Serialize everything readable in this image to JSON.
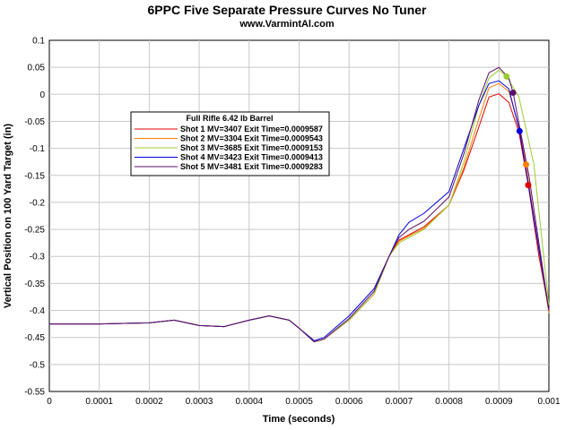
{
  "chart_data": {
    "type": "line",
    "title": "6PPC Five Separate Pressure Curves No Tuner",
    "subtitle": "www.VarmintAl.com",
    "xlabel": "Time (seconds)",
    "ylabel": "Vertical Position on 100 Yard Target (in)",
    "xlim": [
      0,
      0.001
    ],
    "ylim": [
      -0.55,
      0.1
    ],
    "x_ticks": [
      "0",
      "0.0001",
      "0.0002",
      "0.0003",
      "0.0004",
      "0.0005",
      "0.0006",
      "0.0007",
      "0.0008",
      "0.0009",
      "0.001"
    ],
    "y_ticks": [
      "0.1",
      "0.05",
      "0",
      "-0.05",
      "-0.1",
      "-0.15",
      "-0.2",
      "-0.25",
      "-0.3",
      "-0.35",
      "-0.4",
      "-0.45",
      "-0.5",
      "-0.55"
    ],
    "grid": true,
    "legend_title": "Full Rifle 6.42 lb Barrel",
    "legend_position": "upper-left",
    "series": [
      {
        "name": "Shot 1 MV=3407 Exit Time=0.0009587",
        "color": "#e00000",
        "exit": [
          0.0009587,
          -0.168
        ],
        "points": [
          [
            0,
            -0.425
          ],
          [
            0.0001,
            -0.425
          ],
          [
            0.0002,
            -0.423
          ],
          [
            0.00025,
            -0.418
          ],
          [
            0.0003,
            -0.428
          ],
          [
            0.00035,
            -0.43
          ],
          [
            0.0004,
            -0.418
          ],
          [
            0.00044,
            -0.41
          ],
          [
            0.00048,
            -0.418
          ],
          [
            0.0005,
            -0.433
          ],
          [
            0.00053,
            -0.458
          ],
          [
            0.00055,
            -0.453
          ],
          [
            0.0006,
            -0.418
          ],
          [
            0.00065,
            -0.37
          ],
          [
            0.00068,
            -0.3
          ],
          [
            0.0007,
            -0.27
          ],
          [
            0.00072,
            -0.26
          ],
          [
            0.00075,
            -0.245
          ],
          [
            0.0008,
            -0.205
          ],
          [
            0.00083,
            -0.14
          ],
          [
            0.00086,
            -0.06
          ],
          [
            0.00088,
            -0.005
          ],
          [
            0.0009,
            0.001
          ],
          [
            0.00092,
            -0.015
          ],
          [
            0.00094,
            -0.07
          ],
          [
            0.0009587,
            -0.168
          ],
          [
            0.00098,
            -0.3
          ],
          [
            0.001,
            -0.4
          ]
        ]
      },
      {
        "name": "Shot 2 MV=3304 Exit Time=0.0009543",
        "color": "#ff7f00",
        "exit": [
          0.0009543,
          -0.13
        ],
        "points": [
          [
            0,
            -0.425
          ],
          [
            0.0001,
            -0.425
          ],
          [
            0.0002,
            -0.423
          ],
          [
            0.00025,
            -0.418
          ],
          [
            0.0003,
            -0.428
          ],
          [
            0.00035,
            -0.43
          ],
          [
            0.0004,
            -0.418
          ],
          [
            0.00044,
            -0.41
          ],
          [
            0.00048,
            -0.418
          ],
          [
            0.0005,
            -0.433
          ],
          [
            0.00053,
            -0.458
          ],
          [
            0.00055,
            -0.453
          ],
          [
            0.0006,
            -0.418
          ],
          [
            0.00065,
            -0.37
          ],
          [
            0.00068,
            -0.3
          ],
          [
            0.0007,
            -0.272
          ],
          [
            0.00072,
            -0.262
          ],
          [
            0.00075,
            -0.248
          ],
          [
            0.0008,
            -0.205
          ],
          [
            0.00083,
            -0.135
          ],
          [
            0.00086,
            -0.045
          ],
          [
            0.00088,
            0.012
          ],
          [
            0.0009,
            0.02
          ],
          [
            0.00092,
            0.005
          ],
          [
            0.00094,
            -0.06
          ],
          [
            0.0009543,
            -0.13
          ],
          [
            0.00098,
            -0.29
          ],
          [
            0.001,
            -0.405
          ]
        ]
      },
      {
        "name": "Shot 3 MV=3685 Exit Time=0.0009153",
        "color": "#9acd32",
        "exit": [
          0.0009153,
          0.033
        ],
        "points": [
          [
            0,
            -0.425
          ],
          [
            0.0001,
            -0.425
          ],
          [
            0.0002,
            -0.423
          ],
          [
            0.00025,
            -0.418
          ],
          [
            0.0003,
            -0.428
          ],
          [
            0.00035,
            -0.43
          ],
          [
            0.0004,
            -0.418
          ],
          [
            0.00044,
            -0.41
          ],
          [
            0.00048,
            -0.418
          ],
          [
            0.0005,
            -0.433
          ],
          [
            0.00053,
            -0.458
          ],
          [
            0.00055,
            -0.453
          ],
          [
            0.0006,
            -0.418
          ],
          [
            0.00065,
            -0.37
          ],
          [
            0.00068,
            -0.3
          ],
          [
            0.0007,
            -0.275
          ],
          [
            0.00072,
            -0.265
          ],
          [
            0.00075,
            -0.25
          ],
          [
            0.0008,
            -0.205
          ],
          [
            0.00083,
            -0.125
          ],
          [
            0.00086,
            -0.02
          ],
          [
            0.00088,
            0.03
          ],
          [
            0.0009,
            0.045
          ],
          [
            0.0009153,
            0.033
          ],
          [
            0.00094,
            -0.005
          ],
          [
            0.00097,
            -0.13
          ],
          [
            0.001,
            -0.39
          ]
        ]
      },
      {
        "name": "Shot 4 MV=3423 Exit Time=0.0009413",
        "color": "#0000dd",
        "exit": [
          0.0009413,
          -0.068
        ],
        "points": [
          [
            0,
            -0.425
          ],
          [
            0.0001,
            -0.425
          ],
          [
            0.0002,
            -0.423
          ],
          [
            0.00025,
            -0.418
          ],
          [
            0.0003,
            -0.428
          ],
          [
            0.00035,
            -0.43
          ],
          [
            0.0004,
            -0.418
          ],
          [
            0.00044,
            -0.41
          ],
          [
            0.00048,
            -0.418
          ],
          [
            0.0005,
            -0.433
          ],
          [
            0.00053,
            -0.456
          ],
          [
            0.00055,
            -0.45
          ],
          [
            0.0006,
            -0.41
          ],
          [
            0.00065,
            -0.36
          ],
          [
            0.00068,
            -0.3
          ],
          [
            0.0007,
            -0.26
          ],
          [
            0.00072,
            -0.237
          ],
          [
            0.00075,
            -0.22
          ],
          [
            0.0008,
            -0.18
          ],
          [
            0.00083,
            -0.1
          ],
          [
            0.00086,
            -0.02
          ],
          [
            0.00088,
            0.02
          ],
          [
            0.0009,
            0.025
          ],
          [
            0.00092,
            0.01
          ],
          [
            0.0009413,
            -0.068
          ],
          [
            0.00097,
            -0.23
          ],
          [
            0.001,
            -0.4
          ]
        ]
      },
      {
        "name": "Shot 5 MV=3481 Exit Time=0.0009283",
        "color": "#5b0f6b",
        "exit": [
          0.0009283,
          0.003
        ],
        "points": [
          [
            0,
            -0.425
          ],
          [
            0.0001,
            -0.425
          ],
          [
            0.0002,
            -0.423
          ],
          [
            0.00025,
            -0.418
          ],
          [
            0.0003,
            -0.428
          ],
          [
            0.00035,
            -0.43
          ],
          [
            0.0004,
            -0.418
          ],
          [
            0.00044,
            -0.41
          ],
          [
            0.00048,
            -0.418
          ],
          [
            0.0005,
            -0.433
          ],
          [
            0.00053,
            -0.458
          ],
          [
            0.00055,
            -0.453
          ],
          [
            0.0006,
            -0.415
          ],
          [
            0.00065,
            -0.365
          ],
          [
            0.00068,
            -0.3
          ],
          [
            0.0007,
            -0.265
          ],
          [
            0.00072,
            -0.25
          ],
          [
            0.00075,
            -0.235
          ],
          [
            0.0008,
            -0.19
          ],
          [
            0.00083,
            -0.11
          ],
          [
            0.00086,
            -0.01
          ],
          [
            0.00088,
            0.04
          ],
          [
            0.0009,
            0.05
          ],
          [
            0.00092,
            0.03
          ],
          [
            0.0009283,
            0.003
          ],
          [
            0.00096,
            -0.15
          ],
          [
            0.001,
            -0.4
          ]
        ]
      }
    ]
  }
}
